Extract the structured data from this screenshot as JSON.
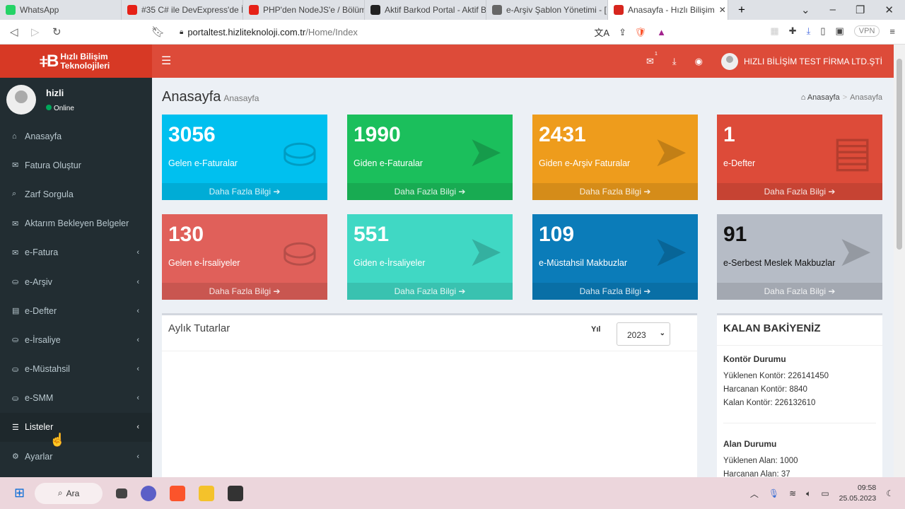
{
  "browser": {
    "tabs": [
      {
        "title": "WhatsApp",
        "icon": "whatsapp-icon",
        "color": "#25d366"
      },
      {
        "title": "#35 C# ile DevExpress'de İş",
        "icon": "youtube-icon",
        "color": "#e62117"
      },
      {
        "title": "PHP'den NodeJS'e / Bölüm",
        "icon": "youtube-icon",
        "color": "#e62117"
      },
      {
        "title": "Aktif Barkod Portal - Aktif B",
        "icon": "aktif-icon",
        "color": "#222"
      },
      {
        "title": "e-Arşiv Şablon Yönetimi - [",
        "icon": "globe-icon",
        "color": "#666"
      },
      {
        "title": "Anasayfa - Hızlı Bilişim",
        "icon": "hizli-icon",
        "color": "#d7261e"
      }
    ],
    "url_domain": "portaltest.hizliteknoloji.com.tr",
    "url_path": "/Home/Index",
    "vpn": "VPN"
  },
  "header": {
    "logo_text": "Hızlı Bilişim Teknolojileri",
    "mail_badge": "1",
    "user": "HIZLI BİLİŞİM TEST FİRMA LTD.ŞTİ",
    "accent": "#dd4b39"
  },
  "sidebar": {
    "user": "hizli",
    "status": "Online",
    "items": [
      {
        "label": "Anasayfa",
        "icon": "home-icon",
        "glyph": "⌂",
        "sub": false
      },
      {
        "label": "Fatura Oluştur",
        "icon": "envelope-icon",
        "glyph": "✉",
        "sub": false
      },
      {
        "label": "Zarf Sorgula",
        "icon": "search-icon",
        "glyph": "⌕",
        "sub": false
      },
      {
        "label": "Aktarım Bekleyen Belgeler",
        "icon": "envelope-icon",
        "glyph": "✉",
        "sub": false
      },
      {
        "label": "e-Fatura",
        "icon": "envelope-icon",
        "glyph": "✉",
        "sub": true
      },
      {
        "label": "e-Arşiv",
        "icon": "inbox-icon",
        "glyph": "⛀",
        "sub": true
      },
      {
        "label": "e-Defter",
        "icon": "book-icon",
        "glyph": "▤",
        "sub": true
      },
      {
        "label": "e-İrsaliye",
        "icon": "inbox-icon",
        "glyph": "⛀",
        "sub": true
      },
      {
        "label": "e-Müstahsil",
        "icon": "inbox-icon",
        "glyph": "⛀",
        "sub": true
      },
      {
        "label": "e-SMM",
        "icon": "inbox-icon",
        "glyph": "⛀",
        "sub": true
      },
      {
        "label": "Listeler",
        "icon": "list-icon",
        "glyph": "☰",
        "sub": true
      },
      {
        "label": "Ayarlar",
        "icon": "gear-icon",
        "glyph": "⚙",
        "sub": true
      }
    ]
  },
  "page": {
    "title": "Anasayfa",
    "subtitle": "Anasayfa",
    "breadcrumb": [
      "Anasayfa",
      "Anasayfa"
    ]
  },
  "tiles": [
    {
      "value": "3056",
      "label": "Gelen e-Faturalar",
      "color": "#00c0ef",
      "icon": "inbox-icon",
      "glyph": "⛀",
      "more": "Daha Fazla Bilgi ➔"
    },
    {
      "value": "1990",
      "label": "Giden e-Faturalar",
      "color": "#1bbf5c",
      "icon": "paper-plane-icon",
      "glyph": "➤",
      "more": "Daha Fazla Bilgi ➔"
    },
    {
      "value": "2431",
      "label": "Giden e-Arşiv Faturalar",
      "color": "#ee9c1c",
      "icon": "paper-plane-icon",
      "glyph": "➤",
      "more": "Daha Fazla Bilgi ➔"
    },
    {
      "value": "1",
      "label": "e-Defter",
      "color": "#dd4b39",
      "icon": "book-icon",
      "glyph": "▤",
      "more": "Daha Fazla Bilgi ➔"
    },
    {
      "value": "130",
      "label": "Gelen e-İrsaliyeler",
      "color": "#e0605a",
      "icon": "inbox-icon",
      "glyph": "⛀",
      "more": "Daha Fazla Bilgi ➔"
    },
    {
      "value": "551",
      "label": "Giden e-İrsaliyeler",
      "color": "#40d8c4",
      "icon": "paper-plane-icon",
      "glyph": "➤",
      "more": "Daha Fazla Bilgi ➔"
    },
    {
      "value": "109",
      "label": "e-Müstahsil Makbuzlar",
      "color": "#0b7cb9",
      "icon": "paper-plane-icon",
      "glyph": "➤",
      "more": "Daha Fazla Bilgi ➔"
    },
    {
      "value": "91",
      "label": "e-Serbest Meslek Makbuzlar",
      "color": "#b6bcc6",
      "icon": "paper-plane-icon",
      "glyph": "➤",
      "more": "Daha Fazla Bilgi ➔",
      "dark": true
    }
  ],
  "monthly": {
    "title": "Aylık Tutarlar",
    "year_label": "Yıl",
    "year": "2023"
  },
  "balance": {
    "title": "KALAN BAKİYENİZ",
    "kontor": {
      "title": "Kontör Durumu",
      "lines": [
        "Yüklenen Kontör: 226141450",
        "Harcanan Kontör: 8840",
        "Kalan Kontör: 226132610"
      ]
    },
    "alan": {
      "title": "Alan Durumu",
      "lines": [
        "Yüklenen Alan: 1000",
        "Harcanan Alan: 37"
      ]
    }
  },
  "taskbar": {
    "search": "Ara",
    "time": "09:58",
    "date": "25.05.2023"
  }
}
